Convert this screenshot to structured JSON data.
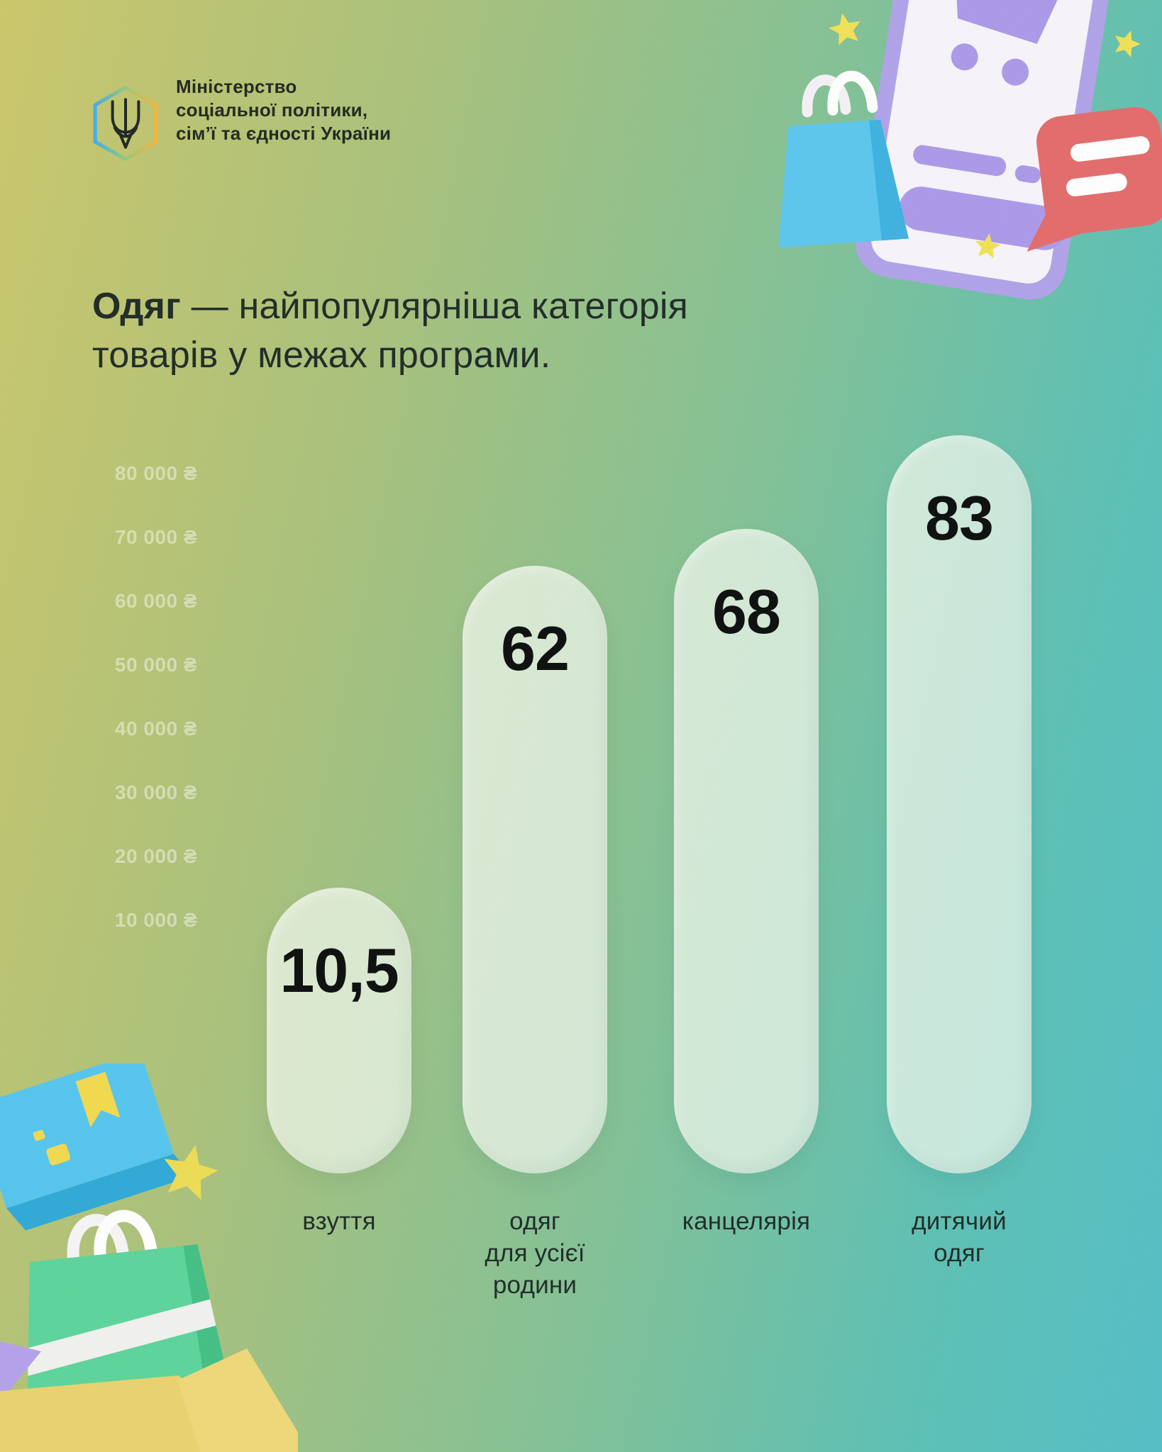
{
  "header": {
    "ministry_lines": [
      "Міністерство",
      "соціальної політики,",
      "сім’ї та єдності України"
    ]
  },
  "title": {
    "bold": "Одяг",
    "line1_rest": " — найпопулярніша категорія",
    "line2": "товарів у межах програми."
  },
  "chart_data": {
    "type": "bar",
    "title": "Одяг — найпопулярніша категорія товарів у межах програми.",
    "categories": [
      "взуття",
      "одяг\nдля усієї\nродини",
      "канцелярія",
      "дитячий\nодяг"
    ],
    "values": [
      10.5,
      62,
      68,
      83
    ],
    "value_labels": [
      "10,5",
      "62",
      "68",
      "83"
    ],
    "y_ticks": [
      "80 000 ₴",
      "70 000 ₴",
      "60 000 ₴",
      "50 000 ₴",
      "40 000 ₴",
      "30 000 ₴",
      "20 000 ₴",
      "10 000 ₴"
    ],
    "currency": "₴",
    "xlabel": "",
    "ylabel": "",
    "grid": false,
    "legend": false,
    "bar_color": "rgba(240,247,236,0.74)"
  },
  "colors": {
    "background_left": "#cbc76a",
    "background_right": "#53bec6",
    "text": "#1f2a26",
    "tick_text": "rgba(255,255,255,0.45)",
    "hex_gradient_start": "#41aee9",
    "hex_gradient_end": "#f6b53c",
    "illustration_purple": "#b1a2e9",
    "illustration_blue": "#5cc6ed",
    "illustration_red": "#e36b6b",
    "illustration_green": "#5cd49b",
    "illustration_yellow": "#f1e156"
  },
  "icons": {
    "logo": "ukraine-trident-in-hexagon",
    "top_right": [
      "smartphone-with-cart",
      "shopping-bag",
      "chat-bubble",
      "stars"
    ],
    "bottom_left": [
      "parcel-box",
      "gift-shopping-bag",
      "star",
      "floor-wedge"
    ]
  }
}
